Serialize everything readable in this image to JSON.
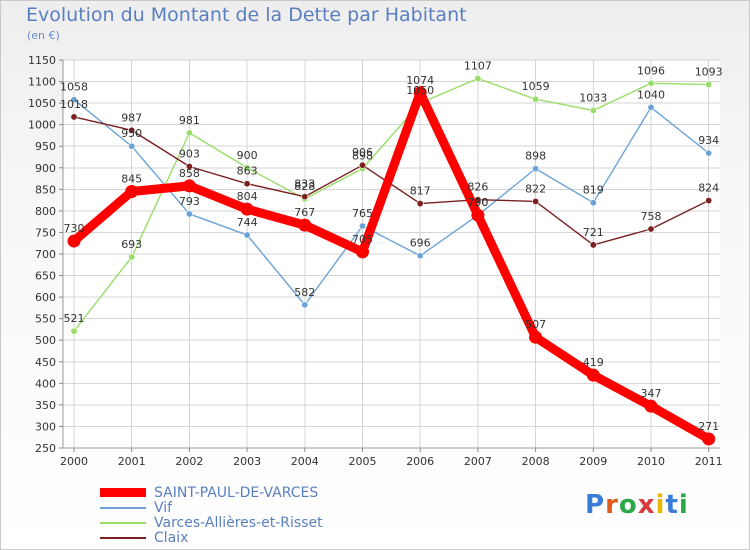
{
  "header": {
    "title": "Evolution du Montant de la Dette par Habitant",
    "unit": "(en €)"
  },
  "logo": {
    "text": "Proxiti",
    "letter_colors": [
      "#3a7dd8",
      "#e05a1a",
      "#2aa84a",
      "#d83a3a",
      "#e6b800",
      "#3a7dd8",
      "#2aa84a"
    ]
  },
  "chart_data": {
    "type": "line",
    "x": [
      "2000",
      "2001",
      "2002",
      "2003",
      "2004",
      "2005",
      "2006",
      "2007",
      "2008",
      "2009",
      "2010",
      "2011"
    ],
    "ylim": [
      250,
      1150
    ],
    "yticks": [
      250,
      300,
      350,
      400,
      450,
      500,
      550,
      600,
      650,
      700,
      750,
      800,
      850,
      900,
      950,
      1000,
      1050,
      1100,
      1150
    ],
    "grid": true,
    "legend_position": "bottom-left",
    "series": [
      {
        "name": "SAINT-PAUL-DE-VARCES",
        "color": "#ff0000",
        "values": [
          730,
          845,
          858,
          804,
          767,
          705,
          1074,
          790,
          507,
          419,
          347,
          271
        ],
        "labels": [
          "730",
          "845",
          "858",
          "804",
          "767",
          "705",
          "1074",
          "790",
          "507",
          "419",
          "347",
          "271"
        ]
      },
      {
        "name": "Vif",
        "color": "#6ba3d6",
        "values": [
          1058,
          950,
          793,
          744,
          582,
          765,
          696,
          790,
          898,
          819,
          1040,
          934
        ],
        "labels": [
          "1058",
          "950",
          "793",
          "744",
          "582",
          "765",
          "696",
          "790",
          "898",
          "819",
          "1040",
          "934"
        ]
      },
      {
        "name": "Varces-Allières-et-Risset",
        "color": "#99dd66",
        "values": [
          521,
          693,
          981,
          900,
          828,
          898,
          1050,
          1107,
          1059,
          1033,
          1096,
          1093
        ],
        "labels": [
          "521",
          "693",
          "981",
          "900",
          "828",
          "898",
          "1050",
          "1107",
          "1059",
          "1033",
          "1096",
          "1093"
        ]
      },
      {
        "name": "Claix",
        "color": "#7a2020",
        "values": [
          1018,
          987,
          903,
          863,
          833,
          906,
          817,
          826,
          822,
          721,
          758,
          824
        ],
        "labels": [
          "1018",
          "987",
          "903",
          "863",
          "833",
          "906",
          "817",
          "826",
          "822",
          "721",
          "758",
          "824"
        ]
      }
    ]
  }
}
